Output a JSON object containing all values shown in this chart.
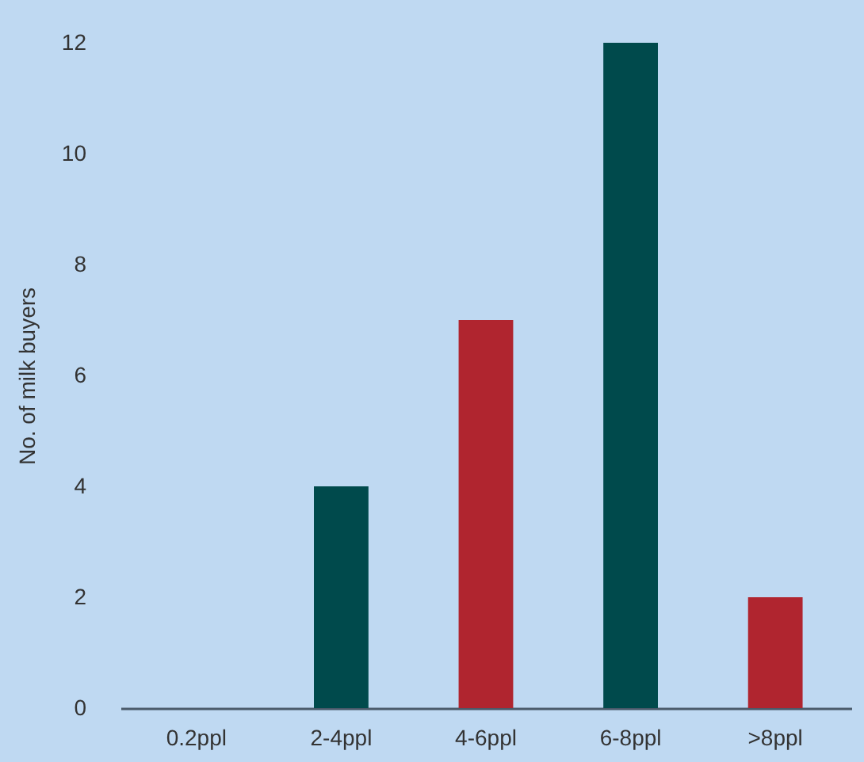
{
  "chart_data": {
    "type": "bar",
    "ylabel": "No. of milk buyers",
    "categories": [
      "0.2ppl",
      "2-4ppl",
      "4-6ppl",
      "6-8ppl",
      ">8ppl"
    ],
    "values": [
      0,
      4,
      7,
      12,
      2
    ],
    "colors": [
      "#b0252f",
      "#004a4c",
      "#b0252f",
      "#004a4c",
      "#b0252f"
    ],
    "ylim": [
      0,
      12
    ],
    "yticks": [
      0,
      2,
      4,
      6,
      8,
      10,
      12
    ],
    "grid": false
  }
}
